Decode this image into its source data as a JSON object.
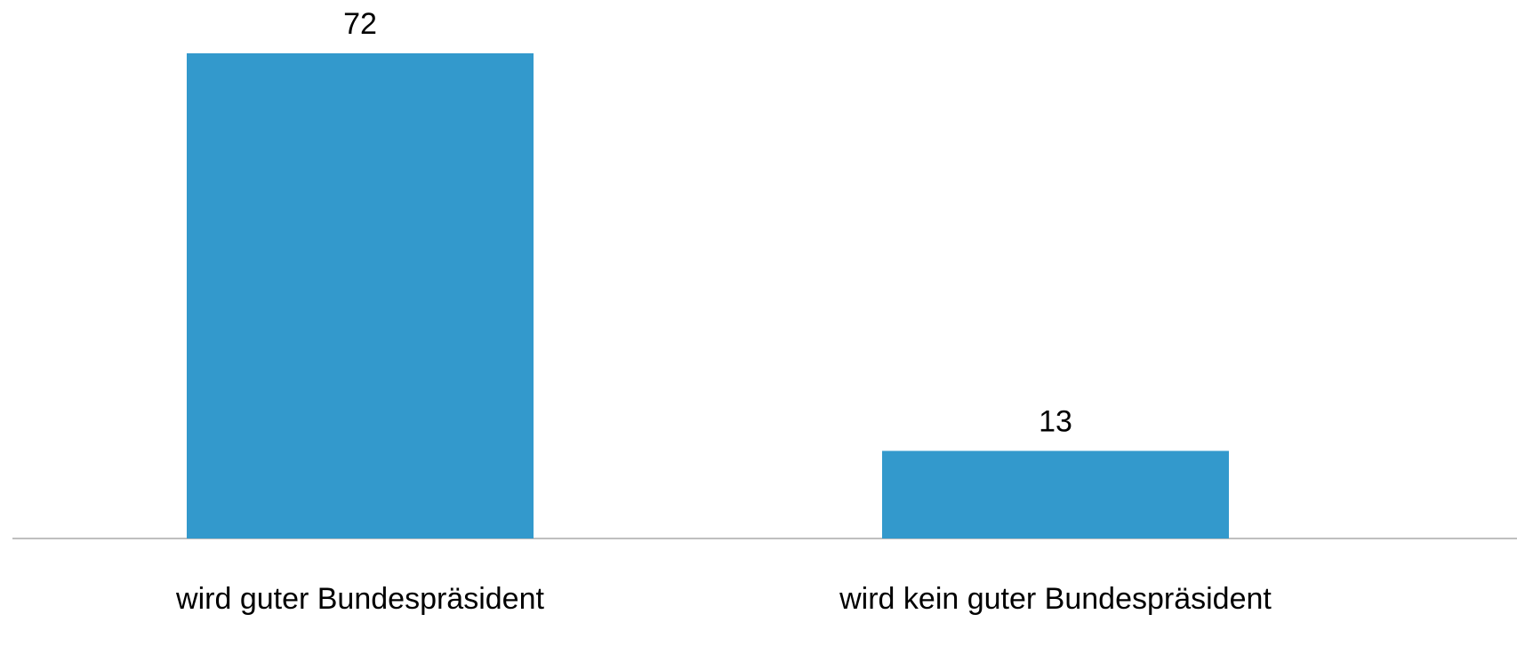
{
  "chart_data": {
    "type": "bar",
    "categories": [
      "wird guter Bundespräsident",
      "wird kein guter Bundespräsident"
    ],
    "values": [
      72,
      13
    ],
    "value_labels": [
      "72",
      "13"
    ],
    "ylim": [
      0,
      72
    ],
    "grid": false,
    "legend": "none",
    "colors": {
      "bar": "#3399cc",
      "axis": "#bfbfbf"
    }
  }
}
